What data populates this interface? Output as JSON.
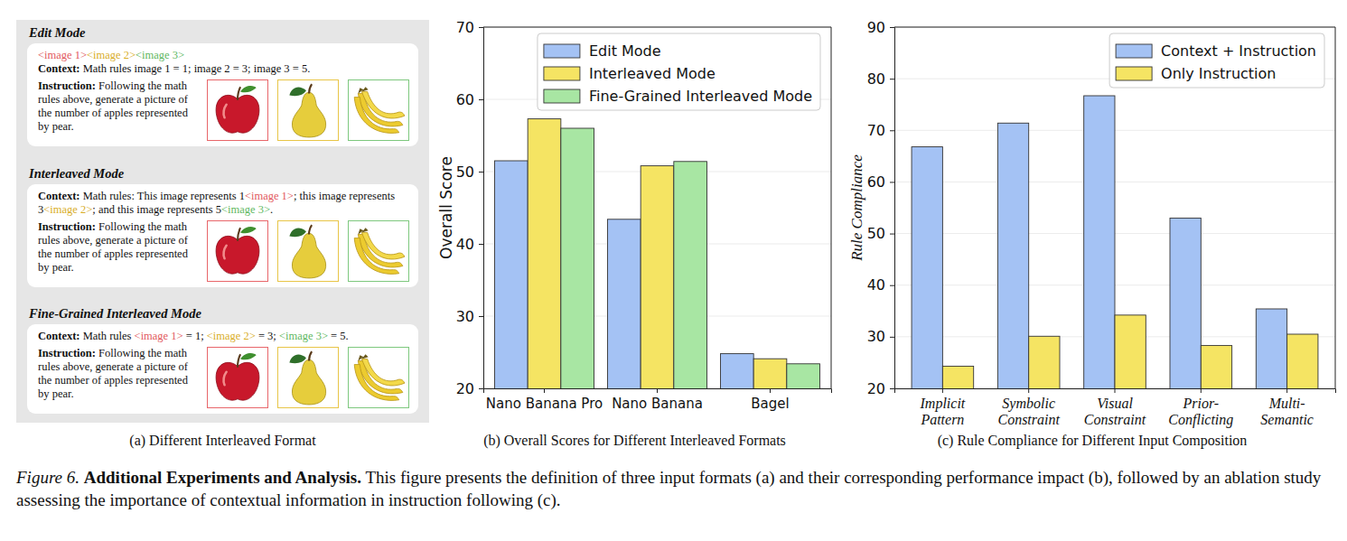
{
  "chart_data": [
    {
      "type": "bar",
      "title": "(b) Overall Scores for Different Interleaved Formats",
      "ylabel": "Overall Score",
      "categories": [
        "Nano Banana Pro",
        "Nano Banana",
        "Bagel"
      ],
      "series": [
        {
          "name": "Edit Mode",
          "color": "#a4c2f4",
          "values": [
            51.5,
            43.4,
            24.8
          ]
        },
        {
          "name": "Interleaved Mode",
          "color": "#f5e463",
          "values": [
            57.3,
            50.8,
            24.1
          ]
        },
        {
          "name": "Fine-Grained Interleaved Mode",
          "color": "#a8e6a3",
          "values": [
            56.0,
            51.4,
            23.4
          ]
        }
      ],
      "ylim": [
        20,
        70
      ],
      "yticks": [
        20,
        30,
        40,
        50,
        60,
        70
      ],
      "grid": true,
      "legend": "upper right"
    },
    {
      "type": "bar",
      "title": "(c) Rule Compliance for Different Input Composition",
      "ylabel": "Rule Compliance",
      "categories": [
        "Implicit Pattern",
        "Symbolic Constraint",
        "Visual Constraint",
        "Prior-Conflicting",
        "Multi-Semantic"
      ],
      "series": [
        {
          "name": "Context + Instruction",
          "color": "#a4c2f4",
          "values": [
            66.8,
            71.4,
            76.7,
            53.0,
            35.4
          ]
        },
        {
          "name": "Only Instruction",
          "color": "#f5e463",
          "values": [
            24.3,
            30.1,
            34.2,
            28.3,
            30.5
          ]
        }
      ],
      "ylim": [
        20,
        90
      ],
      "yticks": [
        20,
        30,
        40,
        50,
        60,
        70,
        80,
        90
      ],
      "grid": true,
      "legend": "upper right"
    }
  ],
  "panel_a": {
    "title": "(a) Different Interleaved Format",
    "image_colors": [
      "#e8666a",
      "#e8c547",
      "#7ec87e"
    ],
    "modes": [
      {
        "name": "Edit Mode",
        "tokens": [
          {
            "text": "<image 1>",
            "color": "#e25a5e"
          },
          {
            "text": "<image 2>",
            "color": "#d9ae2a"
          },
          {
            "text": "<image 3>",
            "color": "#5fb85f"
          }
        ],
        "context": {
          "label": "Context:",
          "segments": [
            {
              "text": "Math rules image 1 = 1; image 2 = 3; image 3 = 5."
            }
          ]
        },
        "instruction": {
          "label": "Instruction:",
          "text": "Following the math rules above, generate a picture of the number of apples represented by pear."
        }
      },
      {
        "name": "Interleaved Mode",
        "context": {
          "label": "Context:",
          "segments": [
            {
              "text": "Math rules: This image represents 1"
            },
            {
              "text": "<image 1>",
              "color": "#e25a5e"
            },
            {
              "text": "; this image represents 3"
            },
            {
              "text": "<image 2>",
              "color": "#d9ae2a"
            },
            {
              "text": "; and this image represents 5"
            },
            {
              "text": "<image 3>",
              "color": "#5fb85f"
            },
            {
              "text": "."
            }
          ]
        },
        "instruction": {
          "label": "Instruction:",
          "text": "Following the math rules above, generate a picture of the number of apples represented by pear."
        }
      },
      {
        "name": "Fine-Grained Interleaved Mode",
        "context": {
          "label": "Context:",
          "segments": [
            {
              "text": "Math rules "
            },
            {
              "text": "<image 1>",
              "color": "#e25a5e"
            },
            {
              "text": " = 1; "
            },
            {
              "text": "<image 2>",
              "color": "#d9ae2a"
            },
            {
              "text": " = 3; "
            },
            {
              "text": "<image 3>",
              "color": "#5fb85f"
            },
            {
              "text": " = 5."
            }
          ]
        },
        "instruction": {
          "label": "Instruction:",
          "text": "Following the math rules above, generate a picture of the number of apples represented by pear."
        }
      }
    ]
  },
  "caption": {
    "label": "Figure 6.",
    "heading": "Additional Experiments and Analysis.",
    "text": "This figure presents the definition of three input formats (a) and their corresponding performance impact (b), followed by an ablation study assessing the importance of contextual information in instruction following (c)."
  }
}
